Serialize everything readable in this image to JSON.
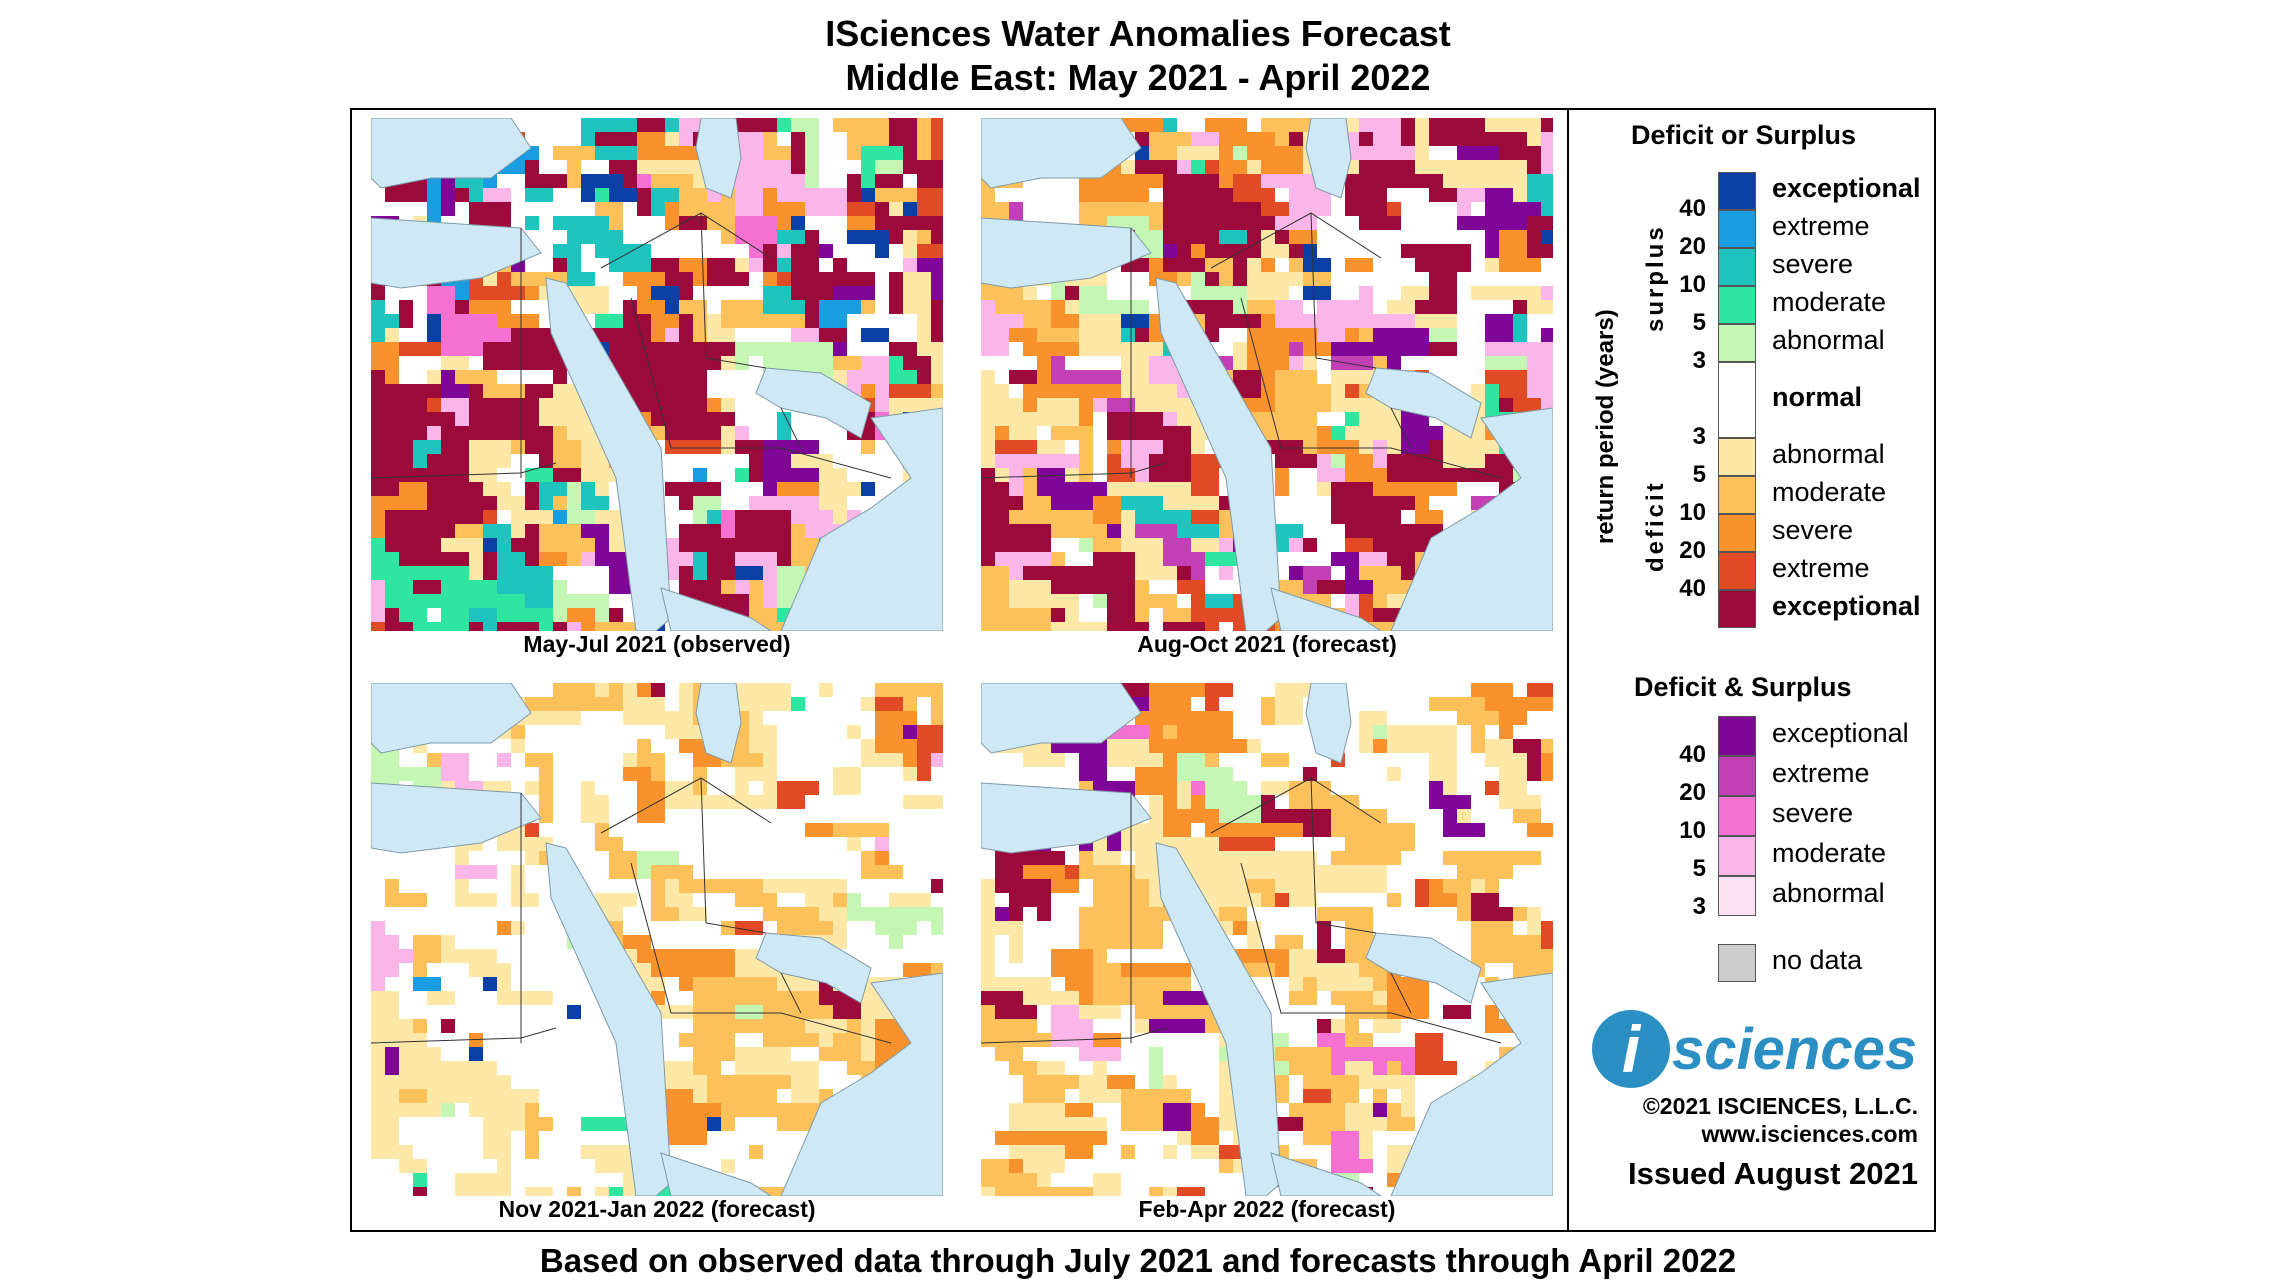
{
  "title_line1": "ISciences Water Anomalies Forecast",
  "title_line2": "Middle East: May 2021 - April 2022",
  "footer": "Based on observed data through July 2021 and forecasts through April 2022",
  "panels": [
    {
      "caption": "May-Jul 2021 (observed)",
      "seed": 11,
      "mix": {
        "deficit_exceptional": 0.26,
        "deficit_extreme": 0.05,
        "deficit_severe": 0.07,
        "deficit_moderate": 0.11,
        "deficit_abnormal": 0.07,
        "normal": 0.14,
        "surplus_abnormal": 0.03,
        "surplus_moderate": 0.03,
        "surplus_severe": 0.05,
        "surplus_extreme": 0.04,
        "surplus_exceptional": 0.03,
        "both_exceptional": 0.04,
        "both_severe": 0.03,
        "both_moderate": 0.05
      }
    },
    {
      "caption": "Aug-Oct 2021 (forecast)",
      "seed": 23,
      "mix": {
        "deficit_exceptional": 0.16,
        "deficit_extreme": 0.05,
        "deficit_severe": 0.09,
        "deficit_moderate": 0.16,
        "deficit_abnormal": 0.11,
        "normal": 0.2,
        "surplus_abnormal": 0.02,
        "surplus_moderate": 0.02,
        "surplus_severe": 0.03,
        "surplus_exceptional": 0.01,
        "both_exceptional": 0.05,
        "both_extreme": 0.02,
        "both_moderate": 0.08
      }
    },
    {
      "caption": "Nov 2021-Jan 2022 (forecast)",
      "seed": 37,
      "mix": {
        "deficit_exceptional": 0.02,
        "deficit_extreme": 0.02,
        "deficit_severe": 0.05,
        "deficit_moderate": 0.14,
        "deficit_abnormal": 0.2,
        "normal": 0.46,
        "surplus_abnormal": 0.03,
        "surplus_moderate": 0.02,
        "surplus_extreme": 0.01,
        "surplus_exceptional": 0.02,
        "both_exceptional": 0.01,
        "both_moderate": 0.02
      }
    },
    {
      "caption": "Feb-Apr 2022 (forecast)",
      "seed": 53,
      "mix": {
        "deficit_exceptional": 0.04,
        "deficit_extreme": 0.04,
        "deficit_severe": 0.08,
        "deficit_moderate": 0.16,
        "deficit_abnormal": 0.2,
        "normal": 0.4,
        "surplus_abnormal": 0.02,
        "surplus_exceptional": 0.01,
        "both_exceptional": 0.02,
        "both_severe": 0.01,
        "both_moderate": 0.02
      }
    }
  ],
  "legend": {
    "heading1": "Deficit or Surplus",
    "axis_label": "return period (years)",
    "surplus_label": "surplus",
    "deficit_label": "deficit",
    "surplus_items": [
      {
        "label": "exceptional",
        "color": "#0a3fa6",
        "bold": true
      },
      {
        "label": "extreme",
        "color": "#1a9ce0",
        "bold": false
      },
      {
        "label": "severe",
        "color": "#1fc4bf",
        "bold": false
      },
      {
        "label": "moderate",
        "color": "#2ee6a0",
        "bold": false
      },
      {
        "label": "abnormal",
        "color": "#c4f7b4",
        "bold": false
      }
    ],
    "normal_label": "normal",
    "normal_color": "#ffffff",
    "deficit_items": [
      {
        "label": "abnormal",
        "color": "#fde8a8",
        "bold": false
      },
      {
        "label": "moderate",
        "color": "#fdc15c",
        "bold": false
      },
      {
        "label": "severe",
        "color": "#f9922c",
        "bold": false
      },
      {
        "label": "extreme",
        "color": "#e04a24",
        "bold": false
      },
      {
        "label": "exceptional",
        "color": "#9c0a3c",
        "bold": true
      }
    ],
    "surplus_numbers": [
      "40",
      "20",
      "10",
      "5",
      "3"
    ],
    "deficit_numbers": [
      "3",
      "5",
      "10",
      "20",
      "40"
    ],
    "heading2": "Deficit & Surplus",
    "both_items": [
      {
        "label": "exceptional",
        "color": "#7e0596"
      },
      {
        "label": "extreme",
        "color": "#c23fb6"
      },
      {
        "label": "severe",
        "color": "#f471d2"
      },
      {
        "label": "moderate",
        "color": "#fab6e8"
      },
      {
        "label": "abnormal",
        "color": "#fde0f2"
      }
    ],
    "both_numbers": [
      "40",
      "20",
      "10",
      "5",
      "3"
    ],
    "nodata_label": "no data",
    "nodata_color": "#cccccc"
  },
  "logo": {
    "i": "i",
    "text": "sciences"
  },
  "copyright": "©2021 ISCIENCES, L.L.C.",
  "website": "www.isciences.com",
  "issued": "Issued August 2021"
}
